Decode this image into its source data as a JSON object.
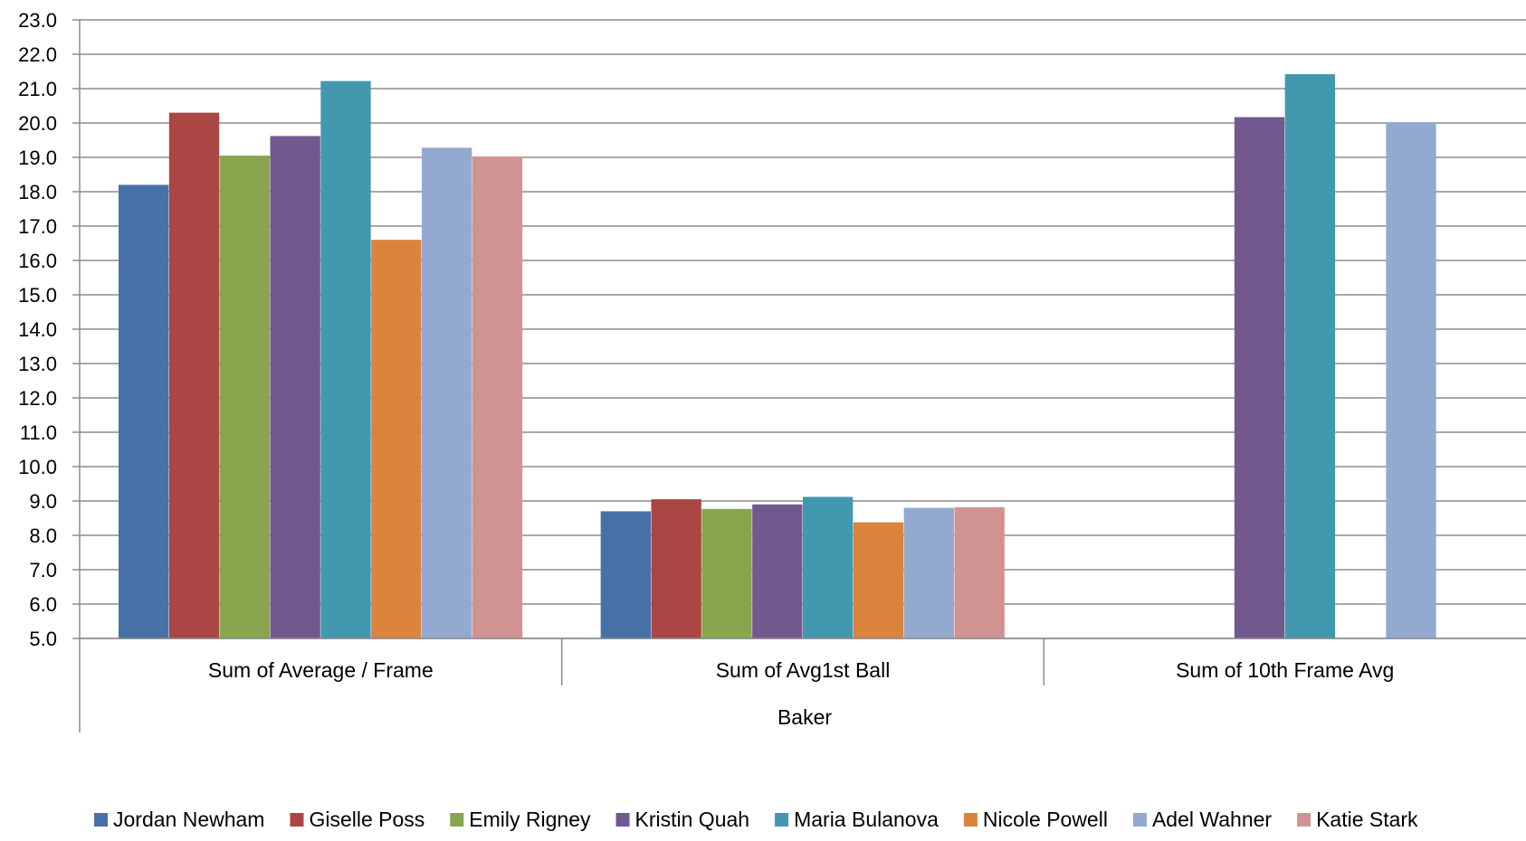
{
  "chart_data": {
    "type": "bar",
    "categories": [
      "Sum of Average / Frame",
      "Sum of Avg1st Ball",
      "Sum of 10th Frame Avg"
    ],
    "x_group_label": "Baker",
    "ylim": [
      5.0,
      23.0
    ],
    "y_ticks": [
      "5.0",
      "6.0",
      "7.0",
      "8.0",
      "9.0",
      "10.0",
      "11.0",
      "12.0",
      "13.0",
      "14.0",
      "15.0",
      "16.0",
      "17.0",
      "18.0",
      "19.0",
      "20.0",
      "21.0",
      "22.0",
      "23.0"
    ],
    "grid": true,
    "legend_position": "bottom",
    "series": [
      {
        "name": "Jordan Newham",
        "color": "#4672A8",
        "values": [
          18.2,
          8.7,
          null
        ]
      },
      {
        "name": "Giselle Poss",
        "color": "#AA4644",
        "values": [
          20.3,
          9.05,
          null
        ]
      },
      {
        "name": "Emily Rigney",
        "color": "#89A54E",
        "values": [
          19.05,
          8.77,
          null
        ]
      },
      {
        "name": "Kristin Quah",
        "color": "#71588F",
        "values": [
          19.62,
          8.9,
          20.17
        ]
      },
      {
        "name": "Maria Bulanova",
        "color": "#4198AF",
        "values": [
          21.22,
          9.12,
          21.42
        ]
      },
      {
        "name": "Nicole Powell",
        "color": "#DB843D",
        "values": [
          16.6,
          8.38,
          null
        ]
      },
      {
        "name": "Adel Wahner",
        "color": "#93A9CF",
        "values": [
          19.28,
          8.8,
          20.02
        ]
      },
      {
        "name": "Katie Stark",
        "color": "#D19392",
        "values": [
          19.02,
          8.82,
          null
        ]
      }
    ]
  }
}
